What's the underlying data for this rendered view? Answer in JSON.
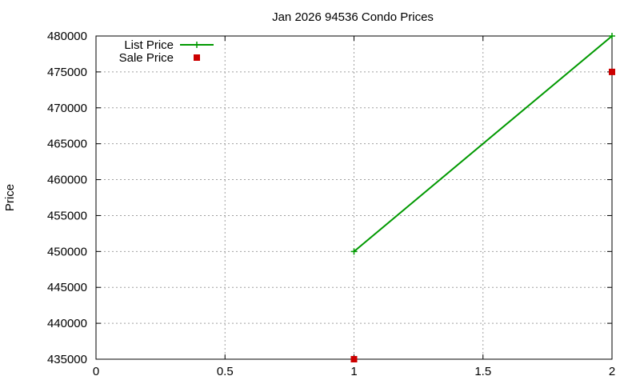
{
  "chart_data": {
    "type": "line",
    "title": "Jan 2026 94536 Condo Prices",
    "xlabel": "",
    "ylabel": "Price",
    "xlim": [
      0,
      2
    ],
    "ylim": [
      435000,
      480000
    ],
    "x_ticks": [
      "0",
      "0.5",
      "1",
      "1.5",
      "2"
    ],
    "y_ticks": [
      "435000",
      "440000",
      "445000",
      "450000",
      "455000",
      "460000",
      "465000",
      "470000",
      "475000",
      "480000"
    ],
    "grid": true,
    "legend_position": "top-left",
    "series": [
      {
        "name": "List Price",
        "style": "line-with-plus-markers",
        "color": "#009900",
        "points": [
          {
            "x": 1,
            "y": 450000
          },
          {
            "x": 2,
            "y": 480000
          }
        ]
      },
      {
        "name": "Sale Price",
        "style": "square-markers",
        "color": "#cc0000",
        "points": [
          {
            "x": 1,
            "y": 435000
          },
          {
            "x": 2,
            "y": 475000
          }
        ]
      }
    ]
  }
}
